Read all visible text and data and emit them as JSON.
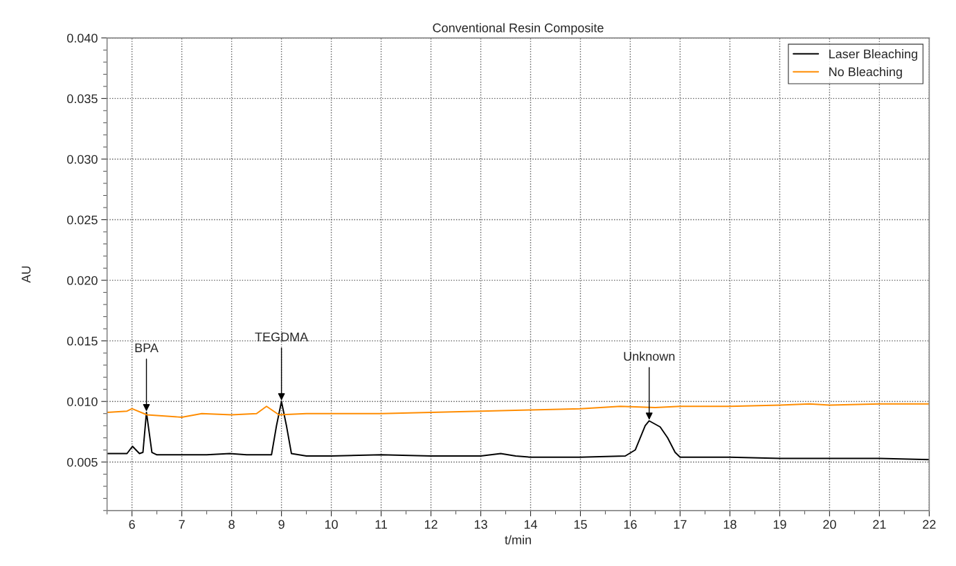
{
  "chart_data": {
    "type": "line",
    "title": "Conventional Resin Composite",
    "xlabel": "t/min",
    "ylabel": "AU",
    "xlim": [
      5.5,
      22
    ],
    "xticks": [
      6,
      7,
      8,
      9,
      10,
      11,
      12,
      13,
      14,
      15,
      16,
      17,
      18,
      19,
      20,
      21,
      22
    ],
    "ylim": [
      0.001,
      0.04
    ],
    "yticks": [
      0.005,
      {
        "value": 0.01,
        "label": "0.010"
      },
      0.015,
      {
        "value": 0.02,
        "label": "0.020"
      },
      0.025,
      {
        "value": 0.03,
        "label": "0.030"
      },
      0.035,
      {
        "value": 0.04,
        "label": "0.040"
      }
    ],
    "grid": true,
    "legend": "top right",
    "line_style": "solid",
    "marker": "none",
    "series": [
      {
        "name": "Laser Bleaching",
        "color": "#000000",
        "x": [
          5.5,
          5.9,
          6.01,
          6.15,
          6.22,
          6.29,
          6.4,
          6.5,
          7.0,
          7.5,
          7.96,
          8.3,
          8.8,
          8.9,
          9.0,
          9.1,
          9.2,
          9.5,
          10,
          11,
          12,
          13,
          13.4,
          13.7,
          14,
          15,
          15.9,
          16.1,
          16.3,
          16.38,
          16.6,
          16.75,
          16.9,
          17,
          18,
          19,
          20,
          21,
          22
        ],
        "values": [
          0.0057,
          0.0057,
          0.0063,
          0.0057,
          0.0058,
          0.0091,
          0.0058,
          0.0056,
          0.0056,
          0.0056,
          0.0057,
          0.0056,
          0.0056,
          0.008,
          0.01,
          0.008,
          0.0057,
          0.0055,
          0.0055,
          0.0056,
          0.0055,
          0.0055,
          0.0057,
          0.0055,
          0.0054,
          0.0054,
          0.0055,
          0.006,
          0.008,
          0.0084,
          0.0079,
          0.007,
          0.0058,
          0.0054,
          0.0054,
          0.0053,
          0.0053,
          0.0053,
          0.0052
        ]
      },
      {
        "name": "No Bleaching",
        "color": "#ff8c00",
        "x": [
          5.5,
          5.9,
          6.0,
          6.3,
          7.0,
          7.4,
          8.0,
          8.5,
          8.7,
          8.95,
          9.5,
          10,
          11,
          12,
          13,
          14,
          15,
          15.8,
          16.5,
          17,
          18,
          19,
          19.6,
          20,
          21,
          22
        ],
        "values": [
          0.0091,
          0.0092,
          0.0094,
          0.0089,
          0.0087,
          0.009,
          0.0089,
          0.009,
          0.0096,
          0.0089,
          0.009,
          0.009,
          0.009,
          0.0091,
          0.0092,
          0.0093,
          0.0094,
          0.0096,
          0.0095,
          0.0096,
          0.0096,
          0.0097,
          0.0098,
          0.0097,
          0.0098,
          0.0098
        ]
      }
    ],
    "annotations": [
      {
        "text": "BPA",
        "x": 6.29,
        "y": 0.0091
      },
      {
        "text": "TEGDMA",
        "x": 9.0,
        "y": 0.01
      },
      {
        "text": "Unknown",
        "x": 16.38,
        "y": 0.0084
      }
    ]
  }
}
